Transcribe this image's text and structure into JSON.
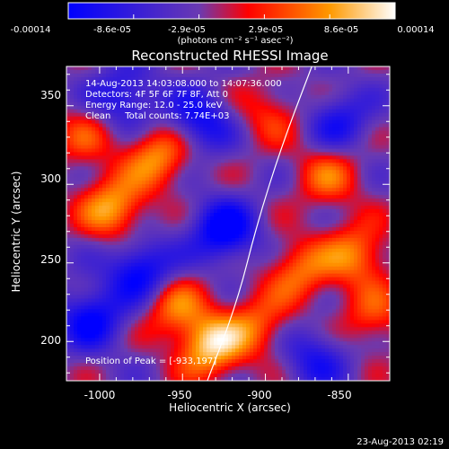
{
  "chart_data": {
    "type": "heatmap",
    "title": "Reconstructed RHESSI Image",
    "xlabel": "Heliocentric X (arcsec)",
    "ylabel": "Heliocentric Y (arcsec)",
    "xlim": [
      -1020,
      -825
    ],
    "ylim": [
      175,
      375
    ],
    "x_ticks": [
      "-1000",
      "-950",
      "-900",
      "-850"
    ],
    "x_tick_values": [
      -1000,
      -950,
      -900,
      -850
    ],
    "y_ticks": [
      "200",
      "250",
      "300",
      "350"
    ],
    "y_tick_values": [
      200,
      250,
      300,
      350
    ],
    "colorbar": {
      "ticks": [
        "-0.00014",
        "-8.6e-05",
        "-2.9e-05",
        "2.9e-05",
        "8.6e-05",
        "0.00014"
      ],
      "units": "(photons cm⁻² s⁻¹ asec⁻²)",
      "range": [
        -0.00014,
        0.00014
      ],
      "colors": [
        "#0000ff",
        "#6a3ab2",
        "#ff0000",
        "#ff9900",
        "#ffffff"
      ]
    },
    "annotations": [
      "14-Aug-2013 14:03:08.000 to 14:07:36.000",
      "Detectors: 4F 5F 6F 7F 8F, Att 0",
      "Energy Range: 12.0 - 25.0 keV",
      "Clean     Total counts: 7.74E+03"
    ],
    "peak_label": "Position of Peak = [-933,197]",
    "peak_position": [
      -933,
      197
    ],
    "limb_curve": [
      [
        -935,
        175
      ],
      [
        -917,
        225
      ],
      [
        -905,
        275
      ],
      [
        -890,
        325
      ],
      [
        -872,
        375
      ]
    ],
    "sources": [
      {
        "x": -933,
        "y": 197,
        "value": 0.00014
      },
      {
        "x": -992,
        "y": 285,
        "value": 0.00012
      },
      {
        "x": -965,
        "y": 318,
        "value": 0.00011
      },
      {
        "x": -845,
        "y": 255,
        "value": 0.0001
      },
      {
        "x": -955,
        "y": 222,
        "value": 9e-05
      },
      {
        "x": -880,
        "y": 245,
        "value": 9e-05
      },
      {
        "x": -905,
        "y": 210,
        "value": 8e-05
      },
      {
        "x": -862,
        "y": 305,
        "value": 8e-05
      },
      {
        "x": -835,
        "y": 215,
        "value": 7e-05
      },
      {
        "x": -1010,
        "y": 330,
        "value": 6e-05
      },
      {
        "x": -898,
        "y": 345,
        "value": 6e-05
      },
      {
        "x": -925,
        "y": 270,
        "value": -0.00013
      },
      {
        "x": -975,
        "y": 245,
        "value": -0.00012
      },
      {
        "x": -1005,
        "y": 215,
        "value": -0.00011
      },
      {
        "x": -940,
        "y": 340,
        "value": -0.0001
      },
      {
        "x": -985,
        "y": 355,
        "value": -9e-05
      },
      {
        "x": -855,
        "y": 340,
        "value": -8e-05
      },
      {
        "x": -870,
        "y": 190,
        "value": -8e-05
      }
    ]
  },
  "timestamp": "23-Aug-2013 02:19"
}
